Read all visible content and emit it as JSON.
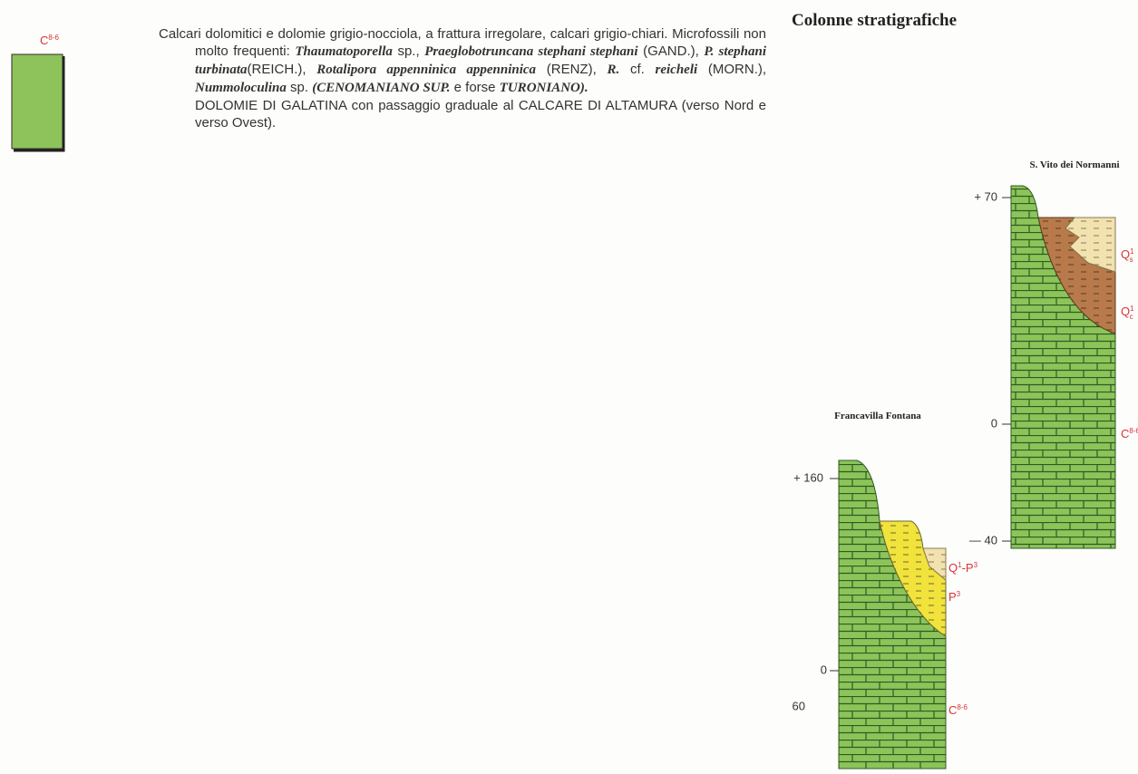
{
  "legend": {
    "symbol": {
      "parts": [
        {
          "text": "C",
          "sup": "8-6"
        }
      ]
    },
    "description": {
      "paragraph1": [
        "Calcari dolomitici e dolomie grigio-nocciola, a frattura irregolare, calcari grigio-chiari. Microfossili non molto frequenti: ",
        "Thaumatoporella",
        " sp., ",
        "Praeglobotruncana stephani stephani",
        " (GAND.), ",
        "P. stephani turbinata",
        "(REICH.), ",
        "Rotalipora appenninica appenninica",
        " (RENZ), ",
        "R.",
        " cf. ",
        "reicheli",
        " (MORN.), ",
        "Nummoloculina",
        " sp. ",
        "(CENOMANIANO SUP.",
        " e forse ",
        "TURONIANO)."
      ],
      "paragraph2": "DOLOMIE DI GALATINA con passaggio graduale al CALCARE DI ALTAMURA (verso Nord e verso Ovest)."
    }
  },
  "columns_title": "Colonne stratigrafiche",
  "columns": [
    {
      "name": "S. Vito dei Normanni",
      "elevations": [
        "+ 70",
        "0",
        "— 40"
      ],
      "units": [
        {
          "parts": [
            {
              "text": "Q",
              "sup": "1",
              "sub": "s"
            }
          ]
        },
        {
          "parts": [
            {
              "text": "Q",
              "sup": "1",
              "sub": "c"
            }
          ]
        },
        {
          "parts": [
            {
              "text": "C",
              "sup": "8-6"
            }
          ]
        }
      ]
    },
    {
      "name": "Francavilla Fontana",
      "elevations": [
        "+ 160",
        "0",
        "60"
      ],
      "units": [
        {
          "parts": [
            {
              "text": "Q",
              "sup": "1"
            },
            {
              "text": "-P",
              "sup": "3"
            }
          ]
        },
        {
          "parts": [
            {
              "text": "P",
              "sup": "3"
            }
          ]
        },
        {
          "parts": [
            {
              "text": "C",
              "sup": "8-6"
            }
          ]
        }
      ]
    }
  ]
}
